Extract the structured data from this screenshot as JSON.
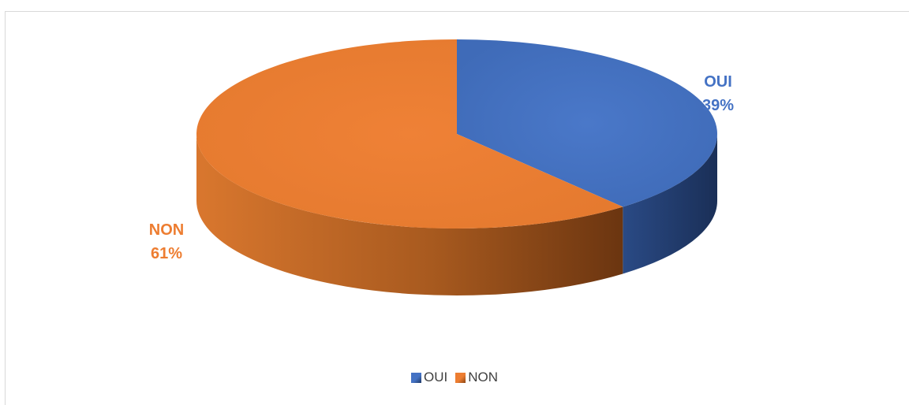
{
  "chart_data": {
    "type": "pie",
    "title": "",
    "slices": [
      {
        "label": "OUI",
        "value": 39,
        "display": "39%",
        "color": "#4472C4",
        "side_color": "#1F3864"
      },
      {
        "label": "NON",
        "value": 61,
        "display": "61%",
        "color": "#ED7D31",
        "side_color": "#8B4513"
      }
    ],
    "legend": {
      "position": "bottom",
      "items": [
        "OUI",
        "NON"
      ]
    }
  }
}
